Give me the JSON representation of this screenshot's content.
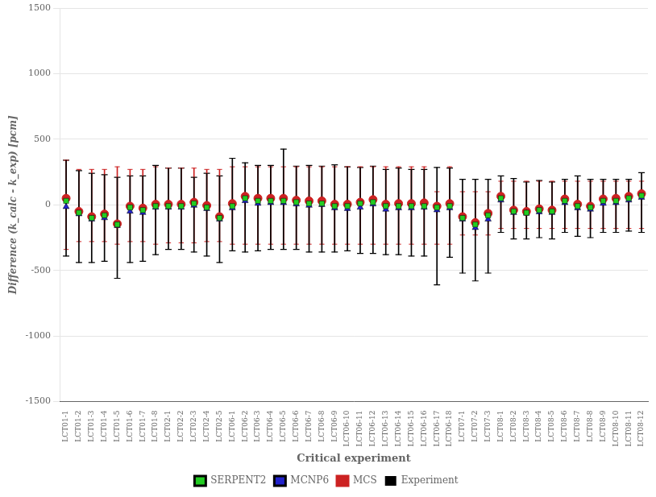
{
  "chart_data": {
    "type": "scatter",
    "xlabel": "Critical experiment",
    "ylabel": "Difference (k_calc - k_exp) [pcm]",
    "categories": [
      "LCT01-1",
      "LCT01-2",
      "LCT01-3",
      "LCT01-4",
      "LCT01-5",
      "LCT01-6",
      "LCT01-7",
      "LCT01-8",
      "LCT02-1",
      "LCT02-2",
      "LCT02-3",
      "LCT02-4",
      "LCT02-5",
      "LCT06-1",
      "LCT06-2",
      "LCT06-3",
      "LCT06-4",
      "LCT06-5",
      "LCT06-6",
      "LCT06-7",
      "LCT06-8",
      "LCT06-9",
      "LCT06-10",
      "LCT06-11",
      "LCT06-12",
      "LCT06-13",
      "LCT06-14",
      "LCT06-15",
      "LCT06-16",
      "LCT06-17",
      "LCT06-18",
      "LCT07-1",
      "LCT07-2",
      "LCT07-3",
      "LCT08-1",
      "LCT08-2",
      "LCT08-3",
      "LCT08-4",
      "LCT08-5",
      "LCT08-6",
      "LCT08-7",
      "LCT08-8",
      "LCT08-9",
      "LCT08-10",
      "LCT08-11",
      "LCT08-12"
    ],
    "series": [
      {
        "name": "SERPENT2",
        "color": "#22cc22",
        "marker": "square",
        "values": [
          30,
          -60,
          -100,
          -80,
          -150,
          -20,
          -40,
          -10,
          -10,
          -10,
          10,
          -20,
          -100,
          -10,
          50,
          30,
          30,
          30,
          20,
          10,
          10,
          -10,
          -10,
          10,
          20,
          -10,
          -10,
          -10,
          -10,
          -20,
          -10,
          -100,
          -150,
          -80,
          50,
          -50,
          -60,
          -40,
          -50,
          30,
          -10,
          -20,
          30,
          30,
          50,
          70
        ],
        "errors": [
          25,
          25,
          25,
          25,
          25,
          25,
          25,
          25,
          25,
          25,
          25,
          25,
          25,
          25,
          25,
          25,
          25,
          25,
          25,
          25,
          25,
          25,
          25,
          25,
          25,
          25,
          25,
          25,
          25,
          25,
          25,
          25,
          25,
          25,
          25,
          25,
          25,
          25,
          25,
          25,
          25,
          25,
          25,
          25,
          25,
          25
        ]
      },
      {
        "name": "MCNP6",
        "color": "#2222cc",
        "marker": "triangle",
        "values": [
          -15,
          -70,
          -110,
          -100,
          -160,
          -50,
          -60,
          -20,
          -20,
          -20,
          -5,
          -30,
          -110,
          -25,
          30,
          10,
          15,
          15,
          5,
          -5,
          0,
          -25,
          -30,
          -20,
          5,
          -35,
          -25,
          -25,
          -20,
          -40,
          -25,
          -110,
          -175,
          -110,
          35,
          -60,
          -65,
          -55,
          -60,
          15,
          -25,
          -35,
          10,
          15,
          35,
          55
        ],
        "errors": [
          25,
          25,
          25,
          25,
          25,
          25,
          25,
          25,
          25,
          25,
          25,
          25,
          25,
          25,
          25,
          25,
          25,
          25,
          25,
          25,
          25,
          25,
          25,
          25,
          25,
          25,
          25,
          25,
          25,
          25,
          25,
          25,
          25,
          25,
          25,
          25,
          25,
          25,
          25,
          25,
          25,
          25,
          25,
          25,
          25,
          25
        ]
      },
      {
        "name": "MCS",
        "color": "#cc2222",
        "marker": "circle",
        "values": [
          50,
          -50,
          -90,
          -70,
          -145,
          -10,
          -25,
          5,
          5,
          5,
          20,
          -5,
          -90,
          10,
          65,
          50,
          50,
          50,
          35,
          30,
          30,
          5,
          5,
          20,
          40,
          5,
          10,
          10,
          15,
          -10,
          10,
          -90,
          -135,
          -65,
          65,
          -40,
          -50,
          -30,
          -40,
          45,
          5,
          -10,
          45,
          50,
          65,
          85
        ],
        "errors": [
          25,
          25,
          25,
          25,
          25,
          25,
          25,
          25,
          25,
          25,
          25,
          25,
          25,
          25,
          25,
          25,
          25,
          25,
          25,
          25,
          25,
          25,
          25,
          25,
          25,
          25,
          25,
          25,
          25,
          25,
          25,
          25,
          25,
          25,
          25,
          25,
          25,
          25,
          25,
          25,
          25,
          25,
          25,
          25,
          25,
          25
        ]
      },
      {
        "name": "Experiment",
        "type": "range",
        "color": "#000000",
        "upper": [
          340,
          260,
          240,
          230,
          210,
          220,
          220,
          300,
          280,
          280,
          210,
          240,
          220,
          355,
          320,
          300,
          300,
          425,
          295,
          300,
          295,
          305,
          290,
          285,
          295,
          270,
          280,
          270,
          270,
          285,
          280,
          195,
          195,
          195,
          220,
          200,
          175,
          185,
          175,
          195,
          220,
          195,
          195,
          195,
          195,
          245
        ],
        "lower": [
          -390,
          -440,
          -440,
          -430,
          -560,
          -440,
          -430,
          -380,
          -340,
          -340,
          -360,
          -390,
          -440,
          -350,
          -360,
          -350,
          -340,
          -340,
          -340,
          -360,
          -360,
          -360,
          -350,
          -370,
          -370,
          -380,
          -380,
          -390,
          -390,
          -610,
          -400,
          -520,
          -580,
          -520,
          -210,
          -260,
          -260,
          -250,
          -260,
          -210,
          -240,
          -250,
          -210,
          -210,
          -200,
          -210
        ]
      },
      {
        "type": "range",
        "color": "#cc2222",
        "upper": [
          340,
          270,
          270,
          270,
          290,
          270,
          270,
          290,
          280,
          280,
          280,
          270,
          270,
          290,
          290,
          290,
          290,
          290,
          290,
          290,
          290,
          290,
          290,
          290,
          290,
          290,
          290,
          290,
          290,
          100,
          290,
          100,
          100,
          100,
          180,
          180,
          180,
          180,
          180,
          180,
          180,
          180,
          180,
          180,
          180,
          180
        ],
        "lower": [
          -340,
          -280,
          -280,
          -280,
          -300,
          -280,
          -280,
          -300,
          -290,
          -290,
          -290,
          -280,
          -280,
          -300,
          -300,
          -300,
          -300,
          -300,
          -300,
          -300,
          -300,
          -300,
          -300,
          -300,
          -300,
          -300,
          -300,
          -300,
          -300,
          -300,
          -300,
          -230,
          -230,
          -230,
          -180,
          -180,
          -180,
          -180,
          -180,
          -180,
          -180,
          -180,
          -180,
          -180,
          -180,
          -180
        ]
      }
    ],
    "ylim": [
      -1500,
      1500
    ],
    "yticks": [
      -1500,
      -1000,
      -500,
      0,
      500,
      1000,
      1500
    ],
    "grid": true,
    "legend": "bottom"
  }
}
